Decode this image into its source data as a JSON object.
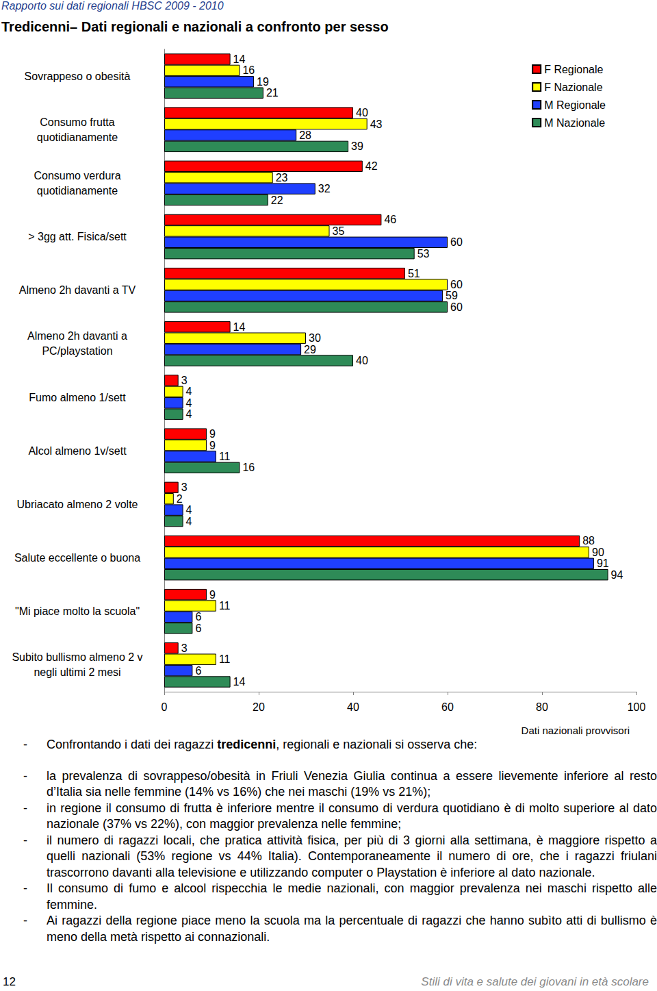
{
  "header": {
    "running_title": "Rapporto sui dati regionali HBSC 2009 - 2010",
    "title": "Tredicenni– Dati regionali e nazionali a confronto per sesso"
  },
  "chart_data": {
    "type": "bar",
    "orientation": "horizontal",
    "data_labels": true,
    "grid": false,
    "legend": "top-right",
    "categories": [
      "Sovrappeso o obesità",
      "Consumo frutta\nquotidianamente",
      "Consumo verdura\nquotidianamente",
      "> 3gg att. Fisica/sett",
      "Almeno 2h davanti a TV",
      "Almeno 2h davanti a\nPC/playstation",
      "Fumo almeno 1/sett",
      "Alcol almeno 1v/sett",
      "Ubriacato almeno 2 volte",
      "Salute eccellente o buona",
      "\"Mi piace molto la scuola\"",
      "Subito bullismo almeno 2 v\nnegli ultimi 2 mesi"
    ],
    "series": [
      {
        "name": "F Regionale",
        "color": "#ff0000",
        "values": [
          14,
          40,
          42,
          46,
          51,
          14,
          3,
          9,
          3,
          88,
          9,
          3
        ]
      },
      {
        "name": "F Nazionale",
        "color": "#ffff00",
        "values": [
          16,
          43,
          23,
          35,
          60,
          30,
          4,
          9,
          2,
          90,
          11,
          11
        ]
      },
      {
        "name": "M Regionale",
        "color": "#1f3fff",
        "values": [
          19,
          28,
          32,
          60,
          59,
          29,
          4,
          11,
          4,
          91,
          6,
          6
        ]
      },
      {
        "name": "M Nazionale",
        "color": "#2e8b57",
        "values": [
          21,
          39,
          22,
          53,
          60,
          40,
          4,
          16,
          4,
          94,
          6,
          14
        ]
      }
    ],
    "xlim": [
      0,
      100
    ],
    "xticks": [
      0,
      20,
      40,
      60,
      80,
      100
    ],
    "annotation": "Dati nazionali provvisori"
  },
  "text": {
    "bullet": "-",
    "intro": {
      "before": "Confrontando i dati dei ragazzi ",
      "bold": "tredicenni",
      "after": ", regionali e nazionali si osserva che:"
    },
    "items": [
      "la prevalenza di sovrappeso/obesità in Friuli Venezia Giulia continua a essere lievemente inferiore al resto d’Italia sia nelle femmine (14% vs 16%) che nei maschi (19% vs 21%);",
      "in regione il consumo di frutta è inferiore mentre il consumo di verdura quotidiano è di molto superiore al dato nazionale (37% vs 22%), con maggior prevalenza nelle femmine;",
      "il numero di ragazzi locali, che pratica attività fisica, per più di 3 giorni alla settimana, è maggiore rispetto a quelli nazionali (53% regione vs 44% Italia). Contemporaneamente il numero di ore, che i ragazzi friulani trascorrono davanti alla televisione e utilizzando computer o Playstation è inferiore al dato nazionale.",
      "Il consumo di fumo e alcool rispecchia le medie nazionali, con maggior prevalenza nei maschi rispetto alle femmine.",
      "Ai ragazzi della regione piace meno la scuola ma la percentuale di ragazzi che hanno subìto atti di bullismo è meno della metà rispetto ai connazionali."
    ]
  },
  "footer": {
    "page": "12",
    "title": "Stili di vita e salute dei giovani in età scolare"
  }
}
